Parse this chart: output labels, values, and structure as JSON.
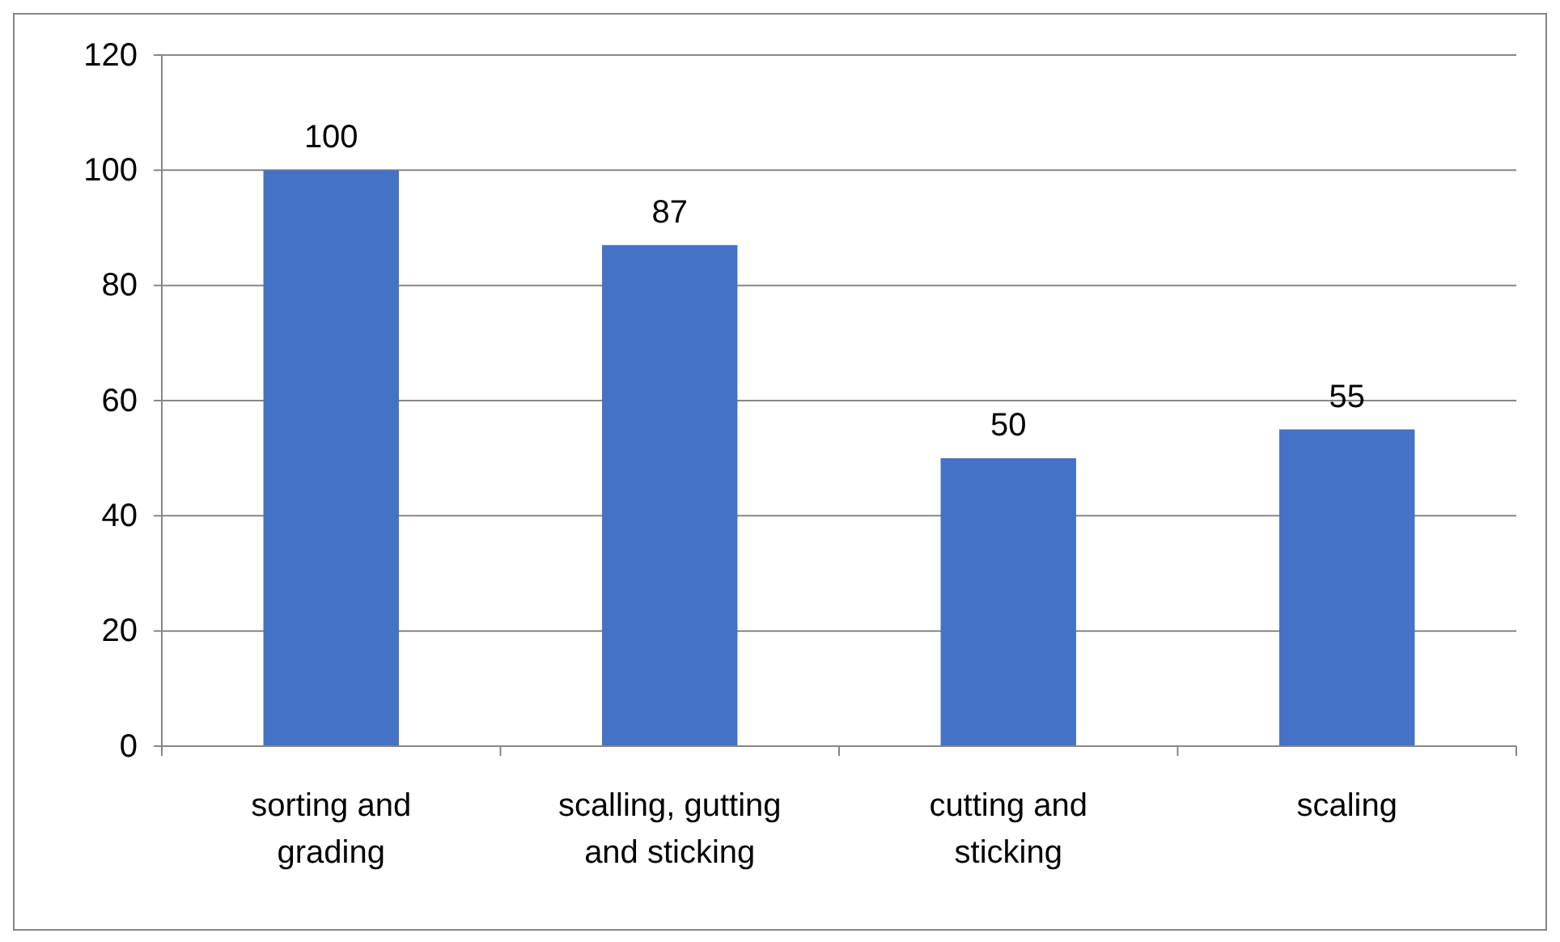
{
  "chart_data": {
    "type": "bar",
    "categories": [
      "sorting and grading",
      "scalling, gutting and sticking",
      "cutting and sticking",
      "scaling"
    ],
    "values": [
      100,
      87,
      50,
      55
    ],
    "color": "#4472c4",
    "ylim": [
      0,
      120
    ],
    "yticks": [
      0,
      20,
      40,
      60,
      80,
      100,
      120
    ],
    "grid": "y",
    "data_labels": true
  }
}
